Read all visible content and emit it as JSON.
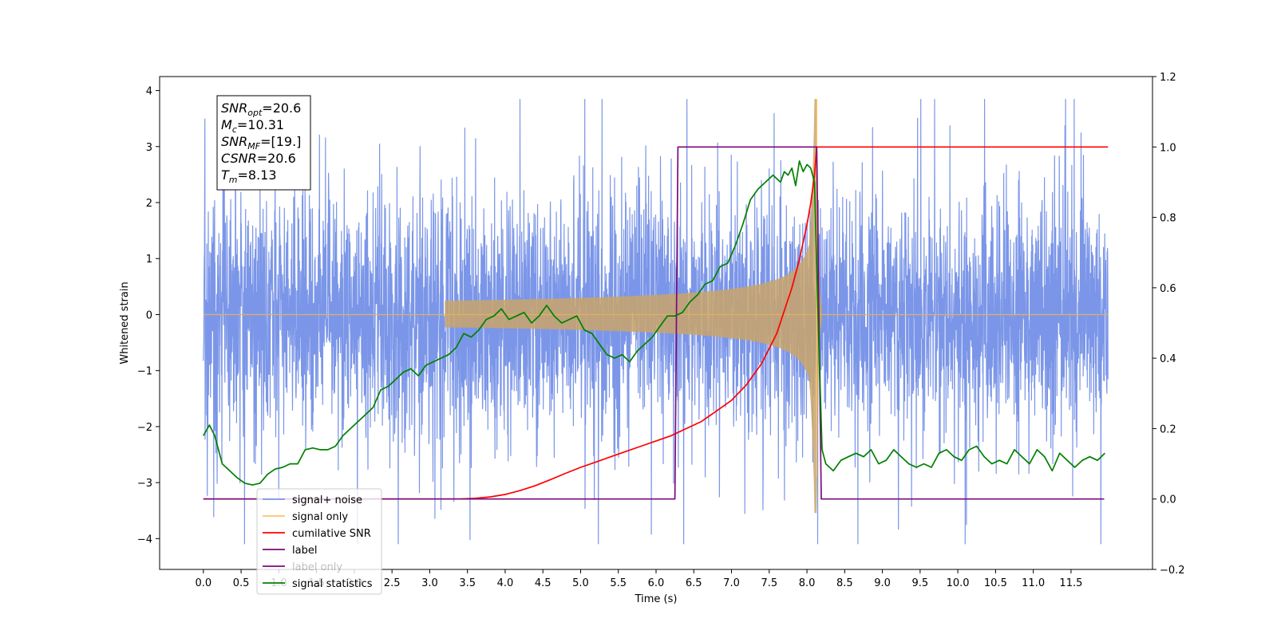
{
  "chart_data": {
    "type": "line",
    "xlabel": "Time (s)",
    "ylabel": "Whitened strain",
    "xlim": [
      -0.58,
      12.58
    ],
    "ylim": [
      -4.55,
      4.25
    ],
    "y2lim": [
      -0.2,
      1.2
    ],
    "x_ticks": [
      0.0,
      0.5,
      1.0,
      1.5,
      2.0,
      2.5,
      3.0,
      3.5,
      4.0,
      4.5,
      5.0,
      5.5,
      6.0,
      6.5,
      7.0,
      7.5,
      8.0,
      8.5,
      9.0,
      9.5,
      10.0,
      10.5,
      11.0,
      11.5
    ],
    "x_tick_labels": [
      "0.0",
      "0.5",
      "1.0",
      "1.5",
      "2.0",
      "2.5",
      "3.0",
      "3.5",
      "4.0",
      "4.5",
      "5.0",
      "5.5",
      "6.0",
      "6.5",
      "7.0",
      "7.5",
      "8.0",
      "8.5",
      "9.0",
      "9.5",
      "10.0",
      "10.5",
      "11.0",
      "11.5"
    ],
    "y_ticks": [
      -4,
      -3,
      -2,
      -1,
      0,
      1,
      2,
      3,
      4
    ],
    "y_tick_labels": [
      "−4",
      "−3",
      "−2",
      "−1",
      "0",
      "1",
      "2",
      "3",
      "4"
    ],
    "y2_ticks": [
      -0.2,
      0.0,
      0.2,
      0.4,
      0.6,
      0.8,
      1.0,
      1.2
    ],
    "y2_tick_labels": [
      "−0.2",
      "0.0",
      "0.2",
      "0.4",
      "0.6",
      "0.8",
      "1.0",
      "1.2"
    ],
    "grid": false,
    "legend_placement": "lower-left",
    "info_box": {
      "lines": [
        {
          "sym": "SNR",
          "sub": "opt",
          "value": "=20.6"
        },
        {
          "sym": "M",
          "sub": "c",
          "value": "=10.31"
        },
        {
          "sym": "SNR",
          "sub": "MF",
          "value": "=[19.]"
        },
        {
          "sym": "CSNR",
          "sub": "",
          "value": "=20.6"
        },
        {
          "sym": "T",
          "sub": "m",
          "value": "=8.13"
        }
      ]
    },
    "series": [
      {
        "name": "signal+ noise",
        "color": "#7b96e8",
        "axis": "left",
        "style": "noise",
        "t_range": [
          0.0,
          11.99
        ],
        "noise_sigma": 1.05,
        "merger_time": 8.13,
        "envelope_amp": 2.9
      },
      {
        "name": "signal only",
        "color": "#ffc266",
        "axis": "left",
        "style": "chirp",
        "t_range": [
          0.0,
          11.99
        ],
        "merger_time": 8.13,
        "peak_amp": 3.85,
        "ringdown_end": 8.2
      },
      {
        "name": "cumilative SNR",
        "color": "#ff0000",
        "axis": "right",
        "x": [
          0.0,
          3.4,
          3.6,
          3.8,
          4.0,
          4.2,
          4.4,
          4.6,
          4.8,
          5.0,
          5.2,
          5.4,
          5.6,
          5.8,
          6.0,
          6.2,
          6.4,
          6.6,
          6.8,
          7.0,
          7.2,
          7.4,
          7.6,
          7.8,
          7.9,
          8.0,
          8.05,
          8.1,
          8.13,
          11.99
        ],
        "y": [
          0.0,
          0.0,
          0.002,
          0.006,
          0.013,
          0.024,
          0.038,
          0.055,
          0.073,
          0.09,
          0.105,
          0.12,
          0.135,
          0.15,
          0.165,
          0.18,
          0.2,
          0.22,
          0.25,
          0.28,
          0.325,
          0.385,
          0.47,
          0.6,
          0.68,
          0.78,
          0.84,
          0.92,
          1.0,
          1.0
        ]
      },
      {
        "name": "label",
        "color": "#7b0a7b",
        "axis": "right",
        "x": [
          0.0,
          6.25,
          6.29,
          8.13,
          8.19,
          11.94
        ],
        "y": [
          0.0,
          0.0,
          1.0,
          1.0,
          0.0,
          0.0
        ]
      },
      {
        "name": "label only",
        "color": "#7b0a7b",
        "axis": "right",
        "hidden": true,
        "x": [],
        "y": []
      },
      {
        "name": "signal statistics",
        "color": "#008000",
        "axis": "right",
        "x": [
          0.0,
          0.08,
          0.15,
          0.25,
          0.35,
          0.45,
          0.55,
          0.65,
          0.75,
          0.85,
          0.95,
          1.05,
          1.15,
          1.25,
          1.35,
          1.45,
          1.55,
          1.65,
          1.75,
          1.85,
          1.95,
          2.05,
          2.15,
          2.25,
          2.35,
          2.45,
          2.55,
          2.65,
          2.75,
          2.85,
          2.95,
          3.05,
          3.15,
          3.25,
          3.35,
          3.45,
          3.55,
          3.65,
          3.75,
          3.85,
          3.95,
          4.05,
          4.15,
          4.25,
          4.35,
          4.45,
          4.55,
          4.65,
          4.75,
          4.85,
          4.95,
          5.05,
          5.15,
          5.25,
          5.35,
          5.45,
          5.55,
          5.65,
          5.75,
          5.85,
          5.95,
          6.05,
          6.15,
          6.25,
          6.35,
          6.45,
          6.55,
          6.65,
          6.75,
          6.85,
          6.95,
          7.05,
          7.15,
          7.25,
          7.35,
          7.45,
          7.55,
          7.6,
          7.65,
          7.7,
          7.75,
          7.8,
          7.85,
          7.9,
          7.95,
          8.0,
          8.05,
          8.1,
          8.15,
          8.2,
          8.25,
          8.35,
          8.45,
          8.55,
          8.65,
          8.75,
          8.85,
          8.95,
          9.05,
          9.15,
          9.25,
          9.35,
          9.45,
          9.55,
          9.65,
          9.75,
          9.85,
          9.95,
          10.05,
          10.15,
          10.25,
          10.35,
          10.45,
          10.55,
          10.65,
          10.75,
          10.85,
          10.95,
          11.05,
          11.15,
          11.25,
          11.35,
          11.45,
          11.55,
          11.65,
          11.75,
          11.85,
          11.95
        ],
        "y": [
          0.18,
          0.21,
          0.18,
          0.1,
          0.08,
          0.06,
          0.045,
          0.04,
          0.045,
          0.07,
          0.085,
          0.09,
          0.1,
          0.1,
          0.14,
          0.145,
          0.14,
          0.14,
          0.15,
          0.18,
          0.2,
          0.22,
          0.24,
          0.26,
          0.31,
          0.32,
          0.34,
          0.36,
          0.37,
          0.35,
          0.38,
          0.39,
          0.4,
          0.41,
          0.43,
          0.47,
          0.46,
          0.48,
          0.51,
          0.52,
          0.54,
          0.51,
          0.52,
          0.53,
          0.5,
          0.52,
          0.55,
          0.52,
          0.5,
          0.51,
          0.52,
          0.48,
          0.47,
          0.44,
          0.41,
          0.4,
          0.41,
          0.39,
          0.42,
          0.44,
          0.46,
          0.49,
          0.52,
          0.52,
          0.53,
          0.56,
          0.58,
          0.61,
          0.62,
          0.66,
          0.67,
          0.72,
          0.78,
          0.85,
          0.88,
          0.9,
          0.92,
          0.91,
          0.9,
          0.93,
          0.92,
          0.94,
          0.89,
          0.96,
          0.93,
          0.95,
          0.94,
          0.9,
          0.5,
          0.14,
          0.1,
          0.08,
          0.11,
          0.12,
          0.13,
          0.12,
          0.14,
          0.1,
          0.11,
          0.14,
          0.12,
          0.1,
          0.09,
          0.1,
          0.09,
          0.13,
          0.14,
          0.12,
          0.11,
          0.14,
          0.15,
          0.12,
          0.1,
          0.11,
          0.1,
          0.14,
          0.12,
          0.1,
          0.14,
          0.12,
          0.08,
          0.13,
          0.11,
          0.09,
          0.11,
          0.12,
          0.11,
          0.13
        ]
      }
    ]
  }
}
